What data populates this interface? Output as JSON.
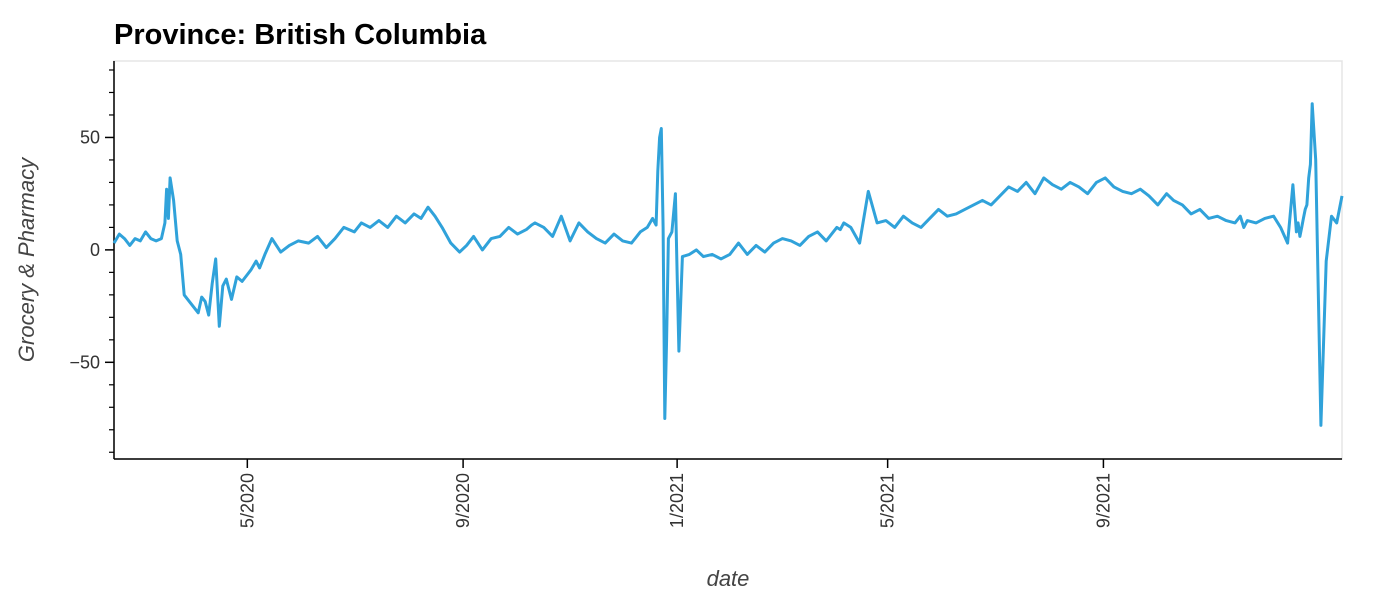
{
  "chart_data": {
    "type": "line",
    "title": "Province: British Columbia",
    "xlabel": "date",
    "ylabel": "Grocery & Pharmacy",
    "color": "#30a2da",
    "x_range": [
      "2020-02-15",
      "2022-01-15"
    ],
    "ylim": [
      -93,
      84
    ],
    "yticks": [
      {
        "value": 50,
        "label": "50"
      },
      {
        "value": 0,
        "label": "0"
      },
      {
        "value": -50,
        "label": "−50"
      }
    ],
    "xticks": [
      {
        "date": "2020-05-01",
        "label": "5/2020"
      },
      {
        "date": "2020-09-01",
        "label": "9/2020"
      },
      {
        "date": "2021-01-01",
        "label": "1/2021"
      },
      {
        "date": "2021-05-01",
        "label": "5/2021"
      },
      {
        "date": "2021-09-01",
        "label": "9/2021"
      }
    ],
    "grid": false,
    "series": [
      {
        "dates": [
          "2020-02-15",
          "2020-02-18",
          "2020-02-21",
          "2020-02-24",
          "2020-02-27",
          "2020-03-01",
          "2020-03-04",
          "2020-03-07",
          "2020-03-10",
          "2020-03-13",
          "2020-03-15",
          "2020-03-16",
          "2020-03-17",
          "2020-03-18",
          "2020-03-20",
          "2020-03-22",
          "2020-03-24",
          "2020-03-26",
          "2020-03-28",
          "2020-03-31",
          "2020-04-03",
          "2020-04-05",
          "2020-04-07",
          "2020-04-09",
          "2020-04-11",
          "2020-04-13",
          "2020-04-15",
          "2020-04-17",
          "2020-04-19",
          "2020-04-22",
          "2020-04-25",
          "2020-04-28",
          "2020-05-01",
          "2020-05-03",
          "2020-05-06",
          "2020-05-08",
          "2020-05-11",
          "2020-05-15",
          "2020-05-20",
          "2020-05-25",
          "2020-05-30",
          "2020-06-05",
          "2020-06-10",
          "2020-06-15",
          "2020-06-20",
          "2020-06-25",
          "2020-07-01",
          "2020-07-05",
          "2020-07-10",
          "2020-07-15",
          "2020-07-20",
          "2020-07-25",
          "2020-07-30",
          "2020-08-04",
          "2020-08-08",
          "2020-08-12",
          "2020-08-16",
          "2020-08-20",
          "2020-08-25",
          "2020-08-30",
          "2020-09-03",
          "2020-09-07",
          "2020-09-12",
          "2020-09-17",
          "2020-09-22",
          "2020-09-27",
          "2020-10-02",
          "2020-10-07",
          "2020-10-10",
          "2020-10-12",
          "2020-10-17",
          "2020-10-22",
          "2020-10-27",
          "2020-11-01",
          "2020-11-06",
          "2020-11-11",
          "2020-11-16",
          "2020-11-21",
          "2020-11-26",
          "2020-12-01",
          "2020-12-06",
          "2020-12-11",
          "2020-12-15",
          "2020-12-18",
          "2020-12-20",
          "2020-12-21",
          "2020-12-22",
          "2020-12-23",
          "2020-12-24",
          "2020-12-25",
          "2020-12-26",
          "2020-12-27",
          "2020-12-29",
          "2020-12-31",
          "2021-01-01",
          "2021-01-02",
          "2021-01-04",
          "2021-01-08",
          "2021-01-12",
          "2021-01-16",
          "2021-01-21",
          "2021-01-26",
          "2021-01-31",
          "2021-02-05",
          "2021-02-10",
          "2021-02-15",
          "2021-02-20",
          "2021-02-25",
          "2021-03-02",
          "2021-03-07",
          "2021-03-12",
          "2021-03-17",
          "2021-03-22",
          "2021-03-27",
          "2021-04-02",
          "2021-04-04",
          "2021-04-06",
          "2021-04-10",
          "2021-04-15",
          "2021-04-20",
          "2021-04-25",
          "2021-04-30",
          "2021-05-05",
          "2021-05-10",
          "2021-05-15",
          "2021-05-20",
          "2021-05-25",
          "2021-05-30",
          "2021-06-04",
          "2021-06-09",
          "2021-06-14",
          "2021-06-19",
          "2021-06-24",
          "2021-06-29",
          "2021-07-04",
          "2021-07-09",
          "2021-07-14",
          "2021-07-19",
          "2021-07-24",
          "2021-07-29",
          "2021-08-03",
          "2021-08-08",
          "2021-08-13",
          "2021-08-18",
          "2021-08-23",
          "2021-08-28",
          "2021-09-02",
          "2021-09-07",
          "2021-09-12",
          "2021-09-17",
          "2021-09-22",
          "2021-09-27",
          "2021-10-02",
          "2021-10-07",
          "2021-10-11",
          "2021-10-16",
          "2021-10-21",
          "2021-10-26",
          "2021-10-31",
          "2021-11-05",
          "2021-11-10",
          "2021-11-15",
          "2021-11-18",
          "2021-11-20",
          "2021-11-22",
          "2021-11-27",
          "2021-12-02",
          "2021-12-07",
          "2021-12-11",
          "2021-12-15",
          "2021-12-18",
          "2021-12-20",
          "2021-12-21",
          "2021-12-22",
          "2021-12-23",
          "2021-12-24",
          "2021-12-25",
          "2021-12-26",
          "2021-12-27",
          "2021-12-28",
          "2021-12-29",
          "2021-12-31",
          "2022-01-03",
          "2022-01-06",
          "2022-01-09",
          "2022-01-12",
          "2022-01-15"
        ],
        "values": [
          3,
          7,
          5,
          2,
          5,
          4,
          8,
          5,
          4,
          5,
          12,
          27,
          14,
          32,
          22,
          4,
          -2,
          -20,
          -22,
          -25,
          -28,
          -21,
          -23,
          -29,
          -15,
          -4,
          -34,
          -16,
          -13,
          -22,
          -12,
          -14,
          -11,
          -9,
          -5,
          -8,
          -2,
          5,
          -1,
          2,
          4,
          3,
          6,
          1,
          5,
          10,
          8,
          12,
          10,
          13,
          10,
          15,
          12,
          16,
          14,
          19,
          15,
          10,
          3,
          -1,
          2,
          6,
          0,
          5,
          6,
          10,
          7,
          9,
          11,
          12,
          10,
          6,
          15,
          4,
          12,
          8,
          5,
          3,
          7,
          4,
          3,
          8,
          10,
          14,
          11,
          35,
          50,
          54,
          10,
          -75,
          -40,
          5,
          8,
          25,
          -10,
          -45,
          -3,
          -2,
          0,
          -3,
          -2,
          -4,
          -2,
          3,
          -2,
          2,
          -1,
          3,
          5,
          4,
          2,
          6,
          8,
          4,
          10,
          9,
          12,
          10,
          3,
          26,
          12,
          13,
          10,
          15,
          12,
          10,
          14,
          18,
          15,
          16,
          18,
          20,
          22,
          20,
          24,
          28,
          26,
          30,
          25,
          32,
          29,
          27,
          30,
          28,
          25,
          30,
          32,
          28,
          26,
          25,
          27,
          24,
          20,
          25,
          22,
          20,
          16,
          18,
          14,
          15,
          13,
          12,
          15,
          10,
          13,
          12,
          14,
          15,
          10,
          3,
          29,
          8,
          12,
          6,
          10,
          14,
          18,
          20,
          32,
          38,
          65,
          40,
          -78,
          -5,
          15,
          12,
          24
        ]
      }
    ]
  }
}
